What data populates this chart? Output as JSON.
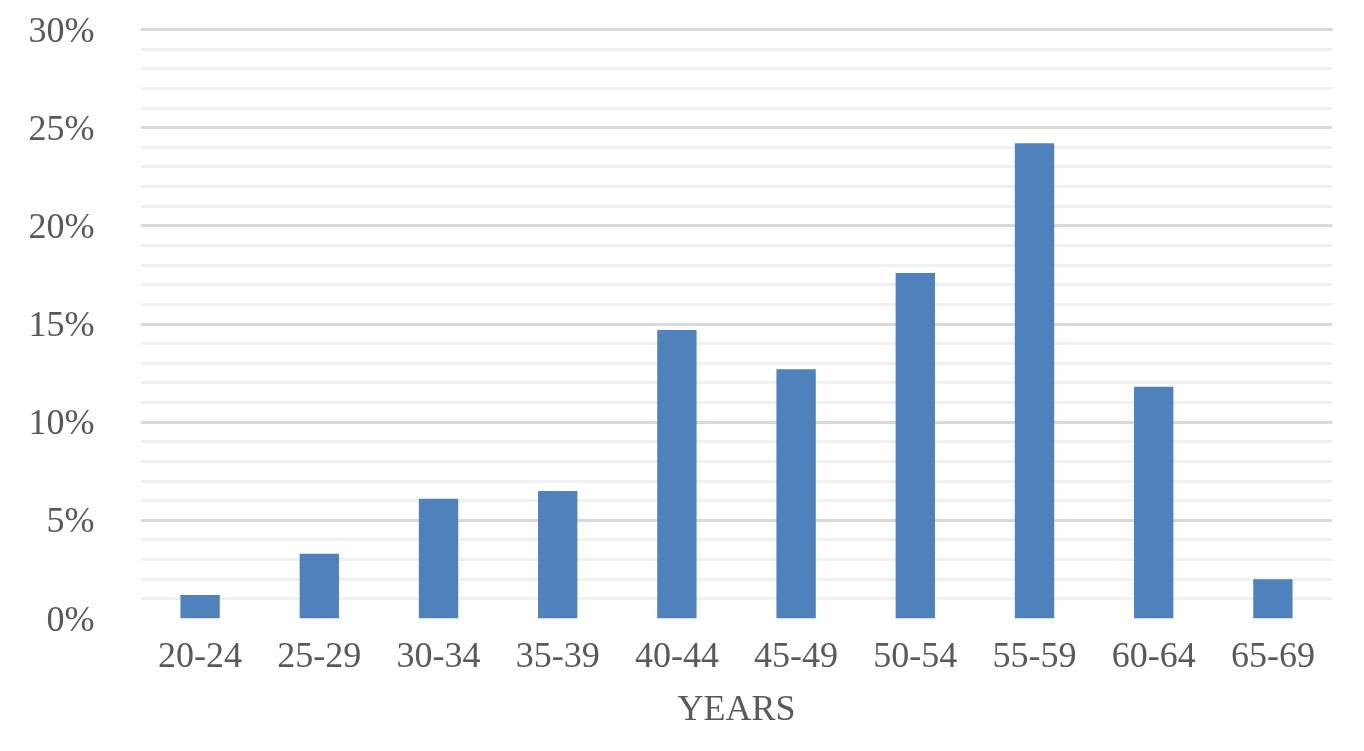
{
  "chart_data": {
    "type": "bar",
    "xlabel": "YEARS",
    "categories": [
      "20-24",
      "25-29",
      "30-34",
      "35-39",
      "40-44",
      "45-49",
      "50-54",
      "55-59",
      "60-64",
      "65-69"
    ],
    "values": [
      1.2,
      3.3,
      6.1,
      6.5,
      14.7,
      12.7,
      17.6,
      24.2,
      11.8,
      2.0
    ],
    "color": "#4f81bd",
    "ylim": [
      0,
      30
    ],
    "yticks": [
      {
        "value": 0,
        "label": "0%"
      },
      {
        "value": 5,
        "label": "5%"
      },
      {
        "value": 10,
        "label": "10%"
      },
      {
        "value": 15,
        "label": "15%"
      },
      {
        "value": 20,
        "label": "20%"
      },
      {
        "value": 25,
        "label": "25%"
      },
      {
        "value": 30,
        "label": "30%"
      }
    ],
    "grid": "y"
  }
}
